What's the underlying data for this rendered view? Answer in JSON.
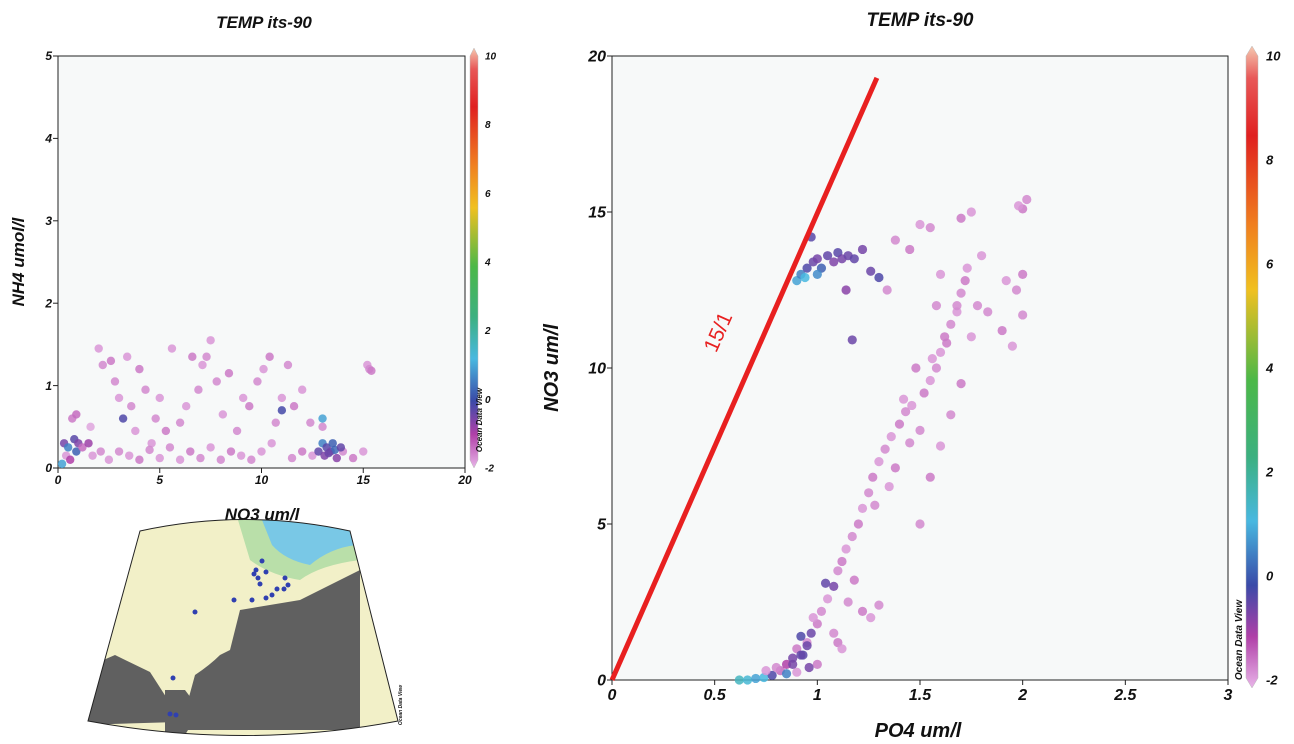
{
  "chart_data": [
    {
      "type": "scatter",
      "title": "TEMP its-90",
      "xlabel": "NO3  um/l",
      "ylabel": "NH4  umol/l",
      "xlim": [
        0,
        20
      ],
      "ylim": [
        0,
        5
      ],
      "x_ticks": [
        "0",
        "5",
        "10",
        "15",
        "20"
      ],
      "y_ticks": [
        "0",
        "1",
        "2",
        "3",
        "4",
        "5"
      ],
      "colorbar": {
        "min": -2,
        "max": 10,
        "ticks": [
          "10",
          "8",
          "6",
          "4",
          "2",
          "0",
          "-2"
        ],
        "label": "Ocean Data View"
      },
      "grid": false,
      "points": [
        {
          "x": 0.3,
          "y": 0.3,
          "c": -0.6
        },
        {
          "x": 0.5,
          "y": 0.25,
          "c": 0.5
        },
        {
          "x": 0.8,
          "y": 0.35,
          "c": -0.3
        },
        {
          "x": 1.0,
          "y": 0.3,
          "c": -0.7
        },
        {
          "x": 0.9,
          "y": 0.2,
          "c": 0.2
        },
        {
          "x": 1.2,
          "y": 0.25,
          "c": -1.5
        },
        {
          "x": 0.4,
          "y": 0.15,
          "c": -1.8
        },
        {
          "x": 0.6,
          "y": 0.1,
          "c": -1.2
        },
        {
          "x": 0.2,
          "y": 0.05,
          "c": 0.8
        },
        {
          "x": 1.5,
          "y": 0.3,
          "c": -1.0
        },
        {
          "x": 1.7,
          "y": 0.15,
          "c": -1.8
        },
        {
          "x": 2.1,
          "y": 0.2,
          "c": -1.7
        },
        {
          "x": 0.7,
          "y": 0.6,
          "c": -1.6
        },
        {
          "x": 0.9,
          "y": 0.65,
          "c": -1.5
        },
        {
          "x": 1.6,
          "y": 0.5,
          "c": -1.9
        },
        {
          "x": 2.2,
          "y": 1.25,
          "c": -1.7
        },
        {
          "x": 2.0,
          "y": 1.45,
          "c": -1.8
        },
        {
          "x": 2.6,
          "y": 1.3,
          "c": -1.6
        },
        {
          "x": 2.8,
          "y": 1.05,
          "c": -1.7
        },
        {
          "x": 3.0,
          "y": 0.85,
          "c": -1.8
        },
        {
          "x": 3.2,
          "y": 0.6,
          "c": -0.2
        },
        {
          "x": 3.4,
          "y": 1.35,
          "c": -1.8
        },
        {
          "x": 3.6,
          "y": 0.75,
          "c": -1.7
        },
        {
          "x": 3.8,
          "y": 0.45,
          "c": -1.8
        },
        {
          "x": 4.0,
          "y": 1.2,
          "c": -1.6
        },
        {
          "x": 4.3,
          "y": 0.95,
          "c": -1.7
        },
        {
          "x": 4.6,
          "y": 0.3,
          "c": -1.8
        },
        {
          "x": 4.8,
          "y": 0.6,
          "c": -1.7
        },
        {
          "x": 5.0,
          "y": 0.85,
          "c": -1.8
        },
        {
          "x": 5.3,
          "y": 0.45,
          "c": -1.6
        },
        {
          "x": 5.6,
          "y": 1.45,
          "c": -1.8
        },
        {
          "x": 6.0,
          "y": 0.55,
          "c": -1.7
        },
        {
          "x": 6.3,
          "y": 0.75,
          "c": -1.8
        },
        {
          "x": 6.6,
          "y": 1.35,
          "c": -1.6
        },
        {
          "x": 6.9,
          "y": 0.95,
          "c": -1.7
        },
        {
          "x": 7.1,
          "y": 1.25,
          "c": -1.8
        },
        {
          "x": 7.3,
          "y": 1.35,
          "c": -1.7
        },
        {
          "x": 7.5,
          "y": 1.55,
          "c": -1.8
        },
        {
          "x": 7.8,
          "y": 1.05,
          "c": -1.7
        },
        {
          "x": 8.1,
          "y": 0.65,
          "c": -1.8
        },
        {
          "x": 8.4,
          "y": 1.15,
          "c": -1.6
        },
        {
          "x": 8.8,
          "y": 0.45,
          "c": -1.7
        },
        {
          "x": 9.1,
          "y": 0.85,
          "c": -1.8
        },
        {
          "x": 9.4,
          "y": 0.75,
          "c": -1.6
        },
        {
          "x": 9.8,
          "y": 1.05,
          "c": -1.7
        },
        {
          "x": 10.1,
          "y": 1.2,
          "c": -1.8
        },
        {
          "x": 10.4,
          "y": 1.35,
          "c": -1.6
        },
        {
          "x": 10.7,
          "y": 0.55,
          "c": -1.7
        },
        {
          "x": 11.0,
          "y": 0.85,
          "c": -1.8
        },
        {
          "x": 11.3,
          "y": 1.25,
          "c": -1.7
        },
        {
          "x": 11.6,
          "y": 0.75,
          "c": -1.6
        },
        {
          "x": 12.0,
          "y": 0.95,
          "c": -1.8
        },
        {
          "x": 12.4,
          "y": 0.55,
          "c": -1.7
        },
        {
          "x": 11.0,
          "y": 0.7,
          "c": -0.1
        },
        {
          "x": 10.5,
          "y": 0.3,
          "c": -1.8
        },
        {
          "x": 2.5,
          "y": 0.1,
          "c": -1.8
        },
        {
          "x": 3.0,
          "y": 0.2,
          "c": -1.7
        },
        {
          "x": 3.5,
          "y": 0.15,
          "c": -1.8
        },
        {
          "x": 4.0,
          "y": 0.1,
          "c": -1.6
        },
        {
          "x": 4.5,
          "y": 0.22,
          "c": -1.7
        },
        {
          "x": 5.0,
          "y": 0.12,
          "c": -1.8
        },
        {
          "x": 5.5,
          "y": 0.25,
          "c": -1.7
        },
        {
          "x": 6.0,
          "y": 0.1,
          "c": -1.8
        },
        {
          "x": 6.5,
          "y": 0.2,
          "c": -1.6
        },
        {
          "x": 7.0,
          "y": 0.12,
          "c": -1.7
        },
        {
          "x": 7.5,
          "y": 0.25,
          "c": -1.8
        },
        {
          "x": 8.0,
          "y": 0.1,
          "c": -1.7
        },
        {
          "x": 8.5,
          "y": 0.2,
          "c": -1.6
        },
        {
          "x": 9.0,
          "y": 0.15,
          "c": -1.8
        },
        {
          "x": 9.5,
          "y": 0.1,
          "c": -1.7
        },
        {
          "x": 10.0,
          "y": 0.2,
          "c": -1.8
        },
        {
          "x": 11.5,
          "y": 0.12,
          "c": -1.7
        },
        {
          "x": 12.0,
          "y": 0.2,
          "c": -1.6
        },
        {
          "x": 12.5,
          "y": 0.15,
          "c": -1.8
        },
        {
          "x": 14.0,
          "y": 0.2,
          "c": -1.7
        },
        {
          "x": 14.5,
          "y": 0.12,
          "c": -1.6
        },
        {
          "x": 15.0,
          "y": 0.2,
          "c": -1.8
        },
        {
          "x": 13.0,
          "y": 0.5,
          "c": -1.7
        },
        {
          "x": 12.8,
          "y": 0.2,
          "c": -0.4
        },
        {
          "x": 13.0,
          "y": 0.3,
          "c": 0.5
        },
        {
          "x": 13.2,
          "y": 0.25,
          "c": -0.3
        },
        {
          "x": 13.4,
          "y": 0.2,
          "c": -0.6
        },
        {
          "x": 13.6,
          "y": 0.22,
          "c": 0.3
        },
        {
          "x": 13.1,
          "y": 0.15,
          "c": -0.7
        },
        {
          "x": 13.3,
          "y": 0.18,
          "c": -0.5
        },
        {
          "x": 13.5,
          "y": 0.3,
          "c": 0.2
        },
        {
          "x": 13.7,
          "y": 0.12,
          "c": -0.8
        },
        {
          "x": 13.9,
          "y": 0.25,
          "c": -0.4
        },
        {
          "x": 13.0,
          "y": 0.6,
          "c": 0.8
        },
        {
          "x": 15.2,
          "y": 1.25,
          "c": -1.8
        },
        {
          "x": 15.3,
          "y": 1.2,
          "c": -1.7
        },
        {
          "x": 15.4,
          "y": 1.18,
          "c": -1.6
        }
      ]
    },
    {
      "type": "scatter",
      "title": "TEMP its-90",
      "xlabel": "PO4  um/l",
      "ylabel": "NO3  um/l",
      "xlim": [
        0,
        3
      ],
      "ylim": [
        0,
        20
      ],
      "x_ticks": [
        "0",
        "0.5",
        "1",
        "1.5",
        "2",
        "2.5",
        "3"
      ],
      "y_ticks": [
        "0",
        "5",
        "10",
        "15",
        "20"
      ],
      "colorbar": {
        "min": -2,
        "max": 10,
        "ticks": [
          "10",
          "8",
          "6",
          "4",
          "2",
          "0",
          "-2"
        ],
        "label": "Ocean Data View"
      },
      "grid": false,
      "reference_line": {
        "label": "15/1",
        "from": [
          0,
          0
        ],
        "to": [
          1.29,
          19.3
        ],
        "color": "#e82020"
      },
      "points": [
        {
          "x": 0.62,
          "y": 0.0,
          "c": 1.5
        },
        {
          "x": 0.66,
          "y": 0.0,
          "c": 1.2
        },
        {
          "x": 0.7,
          "y": 0.05,
          "c": 0.8
        },
        {
          "x": 0.74,
          "y": 0.08,
          "c": 1.0
        },
        {
          "x": 0.78,
          "y": 0.15,
          "c": -0.2
        },
        {
          "x": 0.82,
          "y": 0.3,
          "c": -1.5
        },
        {
          "x": 0.85,
          "y": 0.5,
          "c": -1.2
        },
        {
          "x": 0.88,
          "y": 0.7,
          "c": -0.6
        },
        {
          "x": 0.9,
          "y": 1.0,
          "c": -1.6
        },
        {
          "x": 0.93,
          "y": 0.8,
          "c": -0.3
        },
        {
          "x": 0.95,
          "y": 1.2,
          "c": -1.7
        },
        {
          "x": 0.97,
          "y": 1.5,
          "c": -0.5
        },
        {
          "x": 1.0,
          "y": 1.8,
          "c": -1.6
        },
        {
          "x": 1.02,
          "y": 2.2,
          "c": -1.7
        },
        {
          "x": 1.05,
          "y": 2.6,
          "c": -1.8
        },
        {
          "x": 1.08,
          "y": 3.0,
          "c": -0.6
        },
        {
          "x": 1.1,
          "y": 3.5,
          "c": -1.7
        },
        {
          "x": 1.12,
          "y": 3.8,
          "c": -1.6
        },
        {
          "x": 1.14,
          "y": 4.2,
          "c": -1.8
        },
        {
          "x": 1.17,
          "y": 4.6,
          "c": -1.7
        },
        {
          "x": 1.2,
          "y": 5.0,
          "c": -1.6
        },
        {
          "x": 1.22,
          "y": 5.5,
          "c": -1.8
        },
        {
          "x": 1.25,
          "y": 6.0,
          "c": -1.7
        },
        {
          "x": 1.27,
          "y": 6.5,
          "c": -1.6
        },
        {
          "x": 1.3,
          "y": 7.0,
          "c": -1.8
        },
        {
          "x": 1.33,
          "y": 7.4,
          "c": -1.7
        },
        {
          "x": 1.36,
          "y": 7.8,
          "c": -1.8
        },
        {
          "x": 1.4,
          "y": 8.2,
          "c": -1.6
        },
        {
          "x": 1.43,
          "y": 8.6,
          "c": -1.7
        },
        {
          "x": 1.46,
          "y": 8.8,
          "c": -1.8
        },
        {
          "x": 1.5,
          "y": 8.0,
          "c": -1.7
        },
        {
          "x": 1.52,
          "y": 9.2,
          "c": -1.6
        },
        {
          "x": 1.55,
          "y": 9.6,
          "c": -1.8
        },
        {
          "x": 1.58,
          "y": 10.0,
          "c": -1.7
        },
        {
          "x": 1.6,
          "y": 10.5,
          "c": -1.8
        },
        {
          "x": 1.62,
          "y": 11.0,
          "c": -1.6
        },
        {
          "x": 1.65,
          "y": 11.4,
          "c": -1.7
        },
        {
          "x": 1.68,
          "y": 11.8,
          "c": -1.8
        },
        {
          "x": 1.7,
          "y": 12.4,
          "c": -1.7
        },
        {
          "x": 1.72,
          "y": 12.8,
          "c": -1.6
        },
        {
          "x": 1.73,
          "y": 13.2,
          "c": -1.8
        },
        {
          "x": 1.68,
          "y": 12.0,
          "c": -1.7
        },
        {
          "x": 1.63,
          "y": 10.8,
          "c": -1.6
        },
        {
          "x": 1.56,
          "y": 10.3,
          "c": -1.8
        },
        {
          "x": 1.45,
          "y": 7.6,
          "c": -1.7
        },
        {
          "x": 1.38,
          "y": 6.8,
          "c": -1.6
        },
        {
          "x": 1.35,
          "y": 6.2,
          "c": -1.8
        },
        {
          "x": 1.28,
          "y": 5.6,
          "c": -1.7
        },
        {
          "x": 1.18,
          "y": 3.2,
          "c": -1.6
        },
        {
          "x": 1.15,
          "y": 2.5,
          "c": -1.7
        },
        {
          "x": 1.22,
          "y": 2.2,
          "c": -1.6
        },
        {
          "x": 1.26,
          "y": 2.0,
          "c": -1.8
        },
        {
          "x": 1.3,
          "y": 2.4,
          "c": -1.7
        },
        {
          "x": 1.0,
          "y": 0.5,
          "c": -1.6
        },
        {
          "x": 0.96,
          "y": 0.4,
          "c": -0.6
        },
        {
          "x": 0.9,
          "y": 0.25,
          "c": -1.8
        },
        {
          "x": 0.8,
          "y": 0.4,
          "c": -1.7
        },
        {
          "x": 0.75,
          "y": 0.3,
          "c": -1.8
        },
        {
          "x": 1.1,
          "y": 1.2,
          "c": -1.6
        },
        {
          "x": 1.08,
          "y": 1.5,
          "c": -1.7
        },
        {
          "x": 1.12,
          "y": 1.0,
          "c": -1.8
        },
        {
          "x": 0.92,
          "y": 1.4,
          "c": -0.2
        },
        {
          "x": 0.98,
          "y": 2.0,
          "c": -1.8
        },
        {
          "x": 1.5,
          "y": 5.0,
          "c": -1.7
        },
        {
          "x": 1.55,
          "y": 6.5,
          "c": -1.6
        },
        {
          "x": 1.6,
          "y": 7.5,
          "c": -1.8
        },
        {
          "x": 1.65,
          "y": 8.5,
          "c": -1.7
        },
        {
          "x": 1.7,
          "y": 9.5,
          "c": -1.6
        },
        {
          "x": 1.75,
          "y": 11.0,
          "c": -1.8
        },
        {
          "x": 1.78,
          "y": 12.0,
          "c": -1.7
        },
        {
          "x": 1.42,
          "y": 9.0,
          "c": -1.8
        },
        {
          "x": 1.48,
          "y": 10.0,
          "c": -1.6
        },
        {
          "x": 1.58,
          "y": 12.0,
          "c": -1.7
        },
        {
          "x": 1.6,
          "y": 13.0,
          "c": -1.8
        },
        {
          "x": 1.5,
          "y": 14.6,
          "c": -1.8
        },
        {
          "x": 1.55,
          "y": 14.5,
          "c": -1.7
        },
        {
          "x": 1.7,
          "y": 14.8,
          "c": -1.6
        },
        {
          "x": 1.75,
          "y": 15.0,
          "c": -1.8
        },
        {
          "x": 1.38,
          "y": 14.1,
          "c": -1.7
        },
        {
          "x": 1.45,
          "y": 13.8,
          "c": -1.6
        },
        {
          "x": 1.8,
          "y": 13.6,
          "c": -1.8
        },
        {
          "x": 1.83,
          "y": 11.8,
          "c": -1.7
        },
        {
          "x": 1.9,
          "y": 11.2,
          "c": -1.6
        },
        {
          "x": 1.95,
          "y": 10.7,
          "c": -1.8
        },
        {
          "x": 2.0,
          "y": 11.7,
          "c": -1.7
        },
        {
          "x": 2.0,
          "y": 13.0,
          "c": -1.6
        },
        {
          "x": 1.97,
          "y": 12.5,
          "c": -1.7
        },
        {
          "x": 1.92,
          "y": 12.8,
          "c": -1.8
        },
        {
          "x": 2.0,
          "y": 15.1,
          "c": -1.6
        },
        {
          "x": 2.02,
          "y": 15.4,
          "c": -1.7
        },
        {
          "x": 1.98,
          "y": 15.2,
          "c": -1.8
        },
        {
          "x": 1.34,
          "y": 12.5,
          "c": -1.7
        },
        {
          "x": 0.9,
          "y": 12.8,
          "c": 0.8
        },
        {
          "x": 0.92,
          "y": 13.0,
          "c": 0.5
        },
        {
          "x": 0.95,
          "y": 13.2,
          "c": -0.2
        },
        {
          "x": 0.98,
          "y": 13.4,
          "c": -0.5
        },
        {
          "x": 1.0,
          "y": 13.5,
          "c": -0.6
        },
        {
          "x": 1.02,
          "y": 13.2,
          "c": 0.2
        },
        {
          "x": 1.05,
          "y": 13.6,
          "c": -0.4
        },
        {
          "x": 1.08,
          "y": 13.4,
          "c": -0.7
        },
        {
          "x": 1.1,
          "y": 13.7,
          "c": -0.3
        },
        {
          "x": 1.12,
          "y": 13.5,
          "c": -0.6
        },
        {
          "x": 1.15,
          "y": 13.6,
          "c": -0.5
        },
        {
          "x": 1.18,
          "y": 13.5,
          "c": -0.4
        },
        {
          "x": 1.22,
          "y": 13.8,
          "c": -0.6
        },
        {
          "x": 1.26,
          "y": 13.1,
          "c": -0.5
        },
        {
          "x": 1.3,
          "y": 12.9,
          "c": -0.2
        },
        {
          "x": 0.97,
          "y": 14.2,
          "c": -0.3
        },
        {
          "x": 1.0,
          "y": 13.0,
          "c": 0.6
        },
        {
          "x": 0.94,
          "y": 12.9,
          "c": 1.0
        },
        {
          "x": 1.17,
          "y": 10.9,
          "c": -0.5
        },
        {
          "x": 1.14,
          "y": 12.5,
          "c": -0.8
        },
        {
          "x": 0.88,
          "y": 0.5,
          "c": -0.6
        },
        {
          "x": 0.92,
          "y": 0.8,
          "c": -0.4
        },
        {
          "x": 0.95,
          "y": 1.1,
          "c": -0.5
        },
        {
          "x": 0.85,
          "y": 0.2,
          "c": 0.5
        },
        {
          "x": 1.04,
          "y": 3.1,
          "c": -0.4
        }
      ]
    }
  ],
  "map": {
    "watermark": "Ocean Data View"
  },
  "colors": {
    "plot_bg": "#f7f9f9",
    "reference_line": "#e82020",
    "land": "#606060",
    "sea_shallow": "#f2f0c8",
    "sea_mid": "#b9dfa9",
    "sea_deep": "#79c8e6",
    "station": "#3040b0"
  }
}
